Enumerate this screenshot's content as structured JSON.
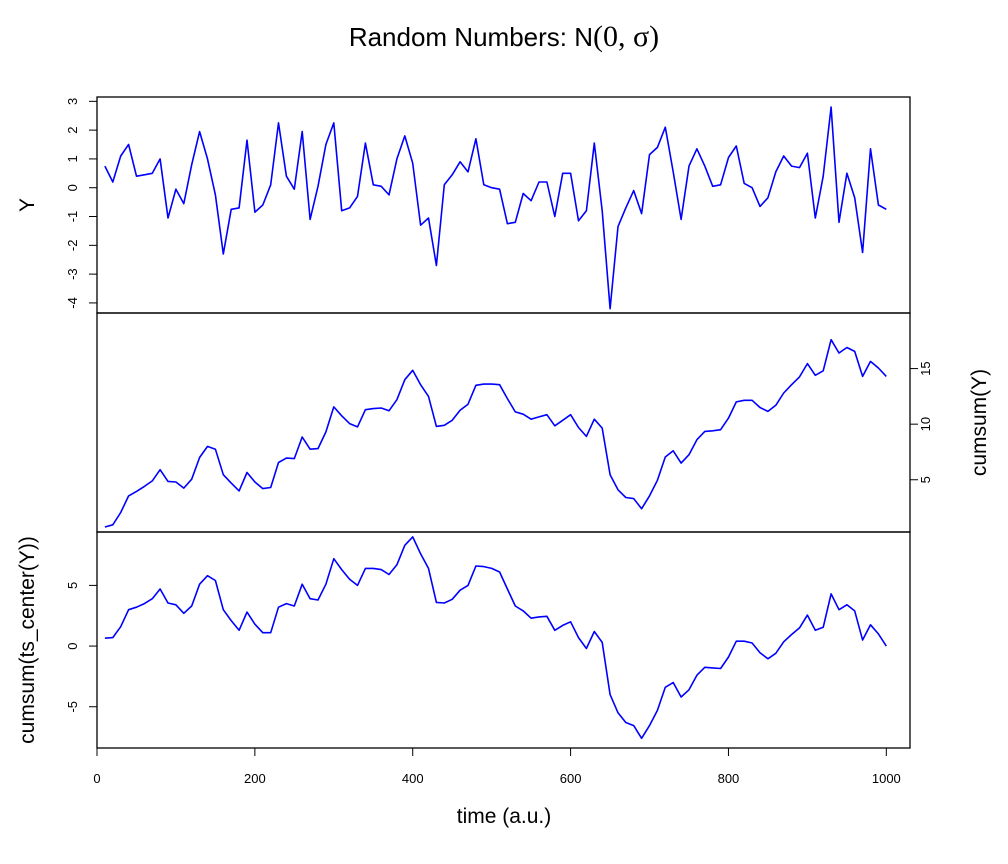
{
  "chart_data": {
    "type": "line",
    "title": {
      "prefix": "Random Numbers: N",
      "math": "(0, σ)"
    },
    "xlabel": "time (a.u.)",
    "xlim": [
      0,
      1030
    ],
    "x_ticks": [
      0,
      200,
      400,
      600,
      800,
      1000
    ],
    "series_color": "#0000ff",
    "x": [
      10,
      20,
      30,
      40,
      50,
      60,
      70,
      80,
      90,
      100,
      110,
      120,
      130,
      140,
      150,
      160,
      170,
      180,
      190,
      200,
      210,
      220,
      230,
      240,
      250,
      260,
      270,
      280,
      290,
      300,
      310,
      320,
      330,
      340,
      350,
      360,
      370,
      380,
      390,
      400,
      410,
      420,
      430,
      440,
      450,
      460,
      470,
      480,
      490,
      500,
      510,
      520,
      530,
      540,
      550,
      560,
      570,
      580,
      590,
      600,
      610,
      620,
      630,
      640,
      650,
      660,
      670,
      680,
      690,
      700,
      710,
      720,
      730,
      740,
      750,
      760,
      770,
      780,
      790,
      800,
      810,
      820,
      830,
      840,
      850,
      860,
      870,
      880,
      890,
      900,
      910,
      920,
      930,
      940,
      950,
      960,
      970,
      980,
      990,
      1000
    ],
    "panels": [
      {
        "ylabel": "Y",
        "ylabel_side": "left",
        "tick_side": "left",
        "ylim": [
          -4.35,
          3.15
        ],
        "y_ticks": [
          -4,
          -3,
          -2,
          -1,
          0,
          1,
          2,
          3
        ],
        "series": [
          {
            "name": "",
            "values": [
              0.75,
              0.2,
              1.1,
              1.5,
              0.4,
              0.45,
              0.5,
              1.0,
              -1.05,
              -0.05,
              -0.55,
              0.8,
              1.95,
              1.0,
              -0.25,
              -2.3,
              -0.75,
              -0.7,
              1.65,
              -0.85,
              -0.6,
              0.1,
              2.25,
              0.4,
              -0.05,
              1.95,
              -1.1,
              0.05,
              1.5,
              2.25,
              -0.8,
              -0.7,
              -0.3,
              1.55,
              0.1,
              0.05,
              -0.25,
              1.0,
              1.8,
              0.85,
              -1.3,
              -1.05,
              -2.7,
              0.1,
              0.45,
              0.9,
              0.55,
              1.7,
              0.1,
              0.0,
              -0.05,
              -1.25,
              -1.2,
              -0.2,
              -0.45,
              0.2,
              0.2,
              -1.0,
              0.5,
              0.5,
              -1.15,
              -0.8,
              1.55,
              -0.8,
              -4.2,
              -1.35,
              -0.7,
              -0.1,
              -0.9,
              1.15,
              1.4,
              2.1,
              0.55,
              -1.1,
              0.75,
              1.35,
              0.75,
              0.05,
              0.1,
              1.05,
              1.45,
              0.15,
              0.0,
              -0.65,
              -0.35,
              0.55,
              1.1,
              0.75,
              0.7,
              1.2,
              -1.05,
              0.4,
              2.8,
              -1.2,
              0.5,
              -0.35,
              -2.25,
              1.35,
              -0.6,
              -0.75
            ]
          }
        ]
      },
      {
        "ylabel": "cumsum(Y)",
        "ylabel_side": "right",
        "tick_side": "right",
        "ylim": [
          0.3,
          20.0
        ],
        "y_ticks": [
          5,
          10,
          15
        ],
        "series": [
          {
            "name": "",
            "values": [
              0.75,
              0.95,
              2.05,
              3.55,
              3.95,
              4.4,
              4.9,
              5.9,
              4.85,
              4.8,
              4.25,
              5.05,
              7.0,
              8.0,
              7.75,
              5.45,
              4.7,
              4.0,
              5.65,
              4.8,
              4.2,
              4.3,
              6.55,
              6.95,
              6.9,
              8.85,
              7.75,
              7.8,
              9.3,
              11.55,
              10.75,
              10.05,
              9.75,
              11.3,
              11.4,
              11.45,
              11.2,
              12.2,
              14.0,
              14.85,
              13.55,
              12.5,
              9.8,
              9.9,
              10.35,
              11.25,
              11.8,
              13.5,
              13.6,
              13.6,
              13.55,
              12.3,
              11.1,
              10.9,
              10.45,
              10.65,
              10.85,
              9.85,
              10.35,
              10.85,
              9.7,
              8.9,
              10.45,
              9.65,
              5.45,
              4.1,
              3.4,
              3.3,
              2.4,
              3.55,
              4.95,
              7.05,
              7.6,
              6.5,
              7.25,
              8.6,
              9.35,
              9.4,
              9.5,
              10.55,
              12.0,
              12.15,
              12.15,
              11.5,
              11.15,
              11.7,
              12.8,
              13.55,
              14.25,
              15.45,
              14.4,
              14.8,
              17.6,
              16.4,
              16.9,
              16.55,
              14.3,
              15.65,
              15.05,
              14.3
            ]
          }
        ]
      },
      {
        "ylabel": "cumsum(ts_center(Y))",
        "ylabel_side": "left",
        "tick_side": "left",
        "ylim": [
          -8.4,
          9.4
        ],
        "y_ticks": [
          -5,
          0,
          5
        ],
        "series": [
          {
            "name": "",
            "values": [
              0.65,
              0.7,
              1.6,
              3.0,
              3.2,
              3.5,
              3.9,
              4.7,
              3.55,
              3.4,
              2.7,
              3.3,
              5.1,
              5.8,
              5.4,
              3.0,
              2.1,
              1.3,
              2.8,
              1.8,
              1.1,
              1.1,
              3.2,
              3.5,
              3.3,
              5.1,
              3.9,
              3.8,
              5.1,
              7.2,
              6.3,
              5.5,
              5.0,
              6.4,
              6.4,
              6.3,
              5.9,
              6.7,
              8.3,
              9.0,
              7.6,
              6.4,
              3.6,
              3.55,
              3.85,
              4.6,
              5.0,
              6.6,
              6.55,
              6.4,
              6.1,
              4.7,
              3.3,
              2.9,
              2.3,
              2.4,
              2.45,
              1.3,
              1.7,
              2.0,
              0.7,
              -0.2,
              1.2,
              0.3,
              -4.0,
              -5.5,
              -6.3,
              -6.55,
              -7.6,
              -6.55,
              -5.3,
              -3.4,
              -3.0,
              -4.2,
              -3.6,
              -2.4,
              -1.75,
              -1.8,
              -1.85,
              -0.9,
              0.4,
              0.4,
              0.25,
              -0.55,
              -1.05,
              -0.6,
              0.35,
              0.95,
              1.5,
              2.55,
              1.3,
              1.55,
              4.3,
              3.0,
              3.4,
              2.9,
              0.5,
              1.75,
              1.0,
              0.0
            ]
          }
        ]
      }
    ],
    "grid": false,
    "legend": "none"
  }
}
